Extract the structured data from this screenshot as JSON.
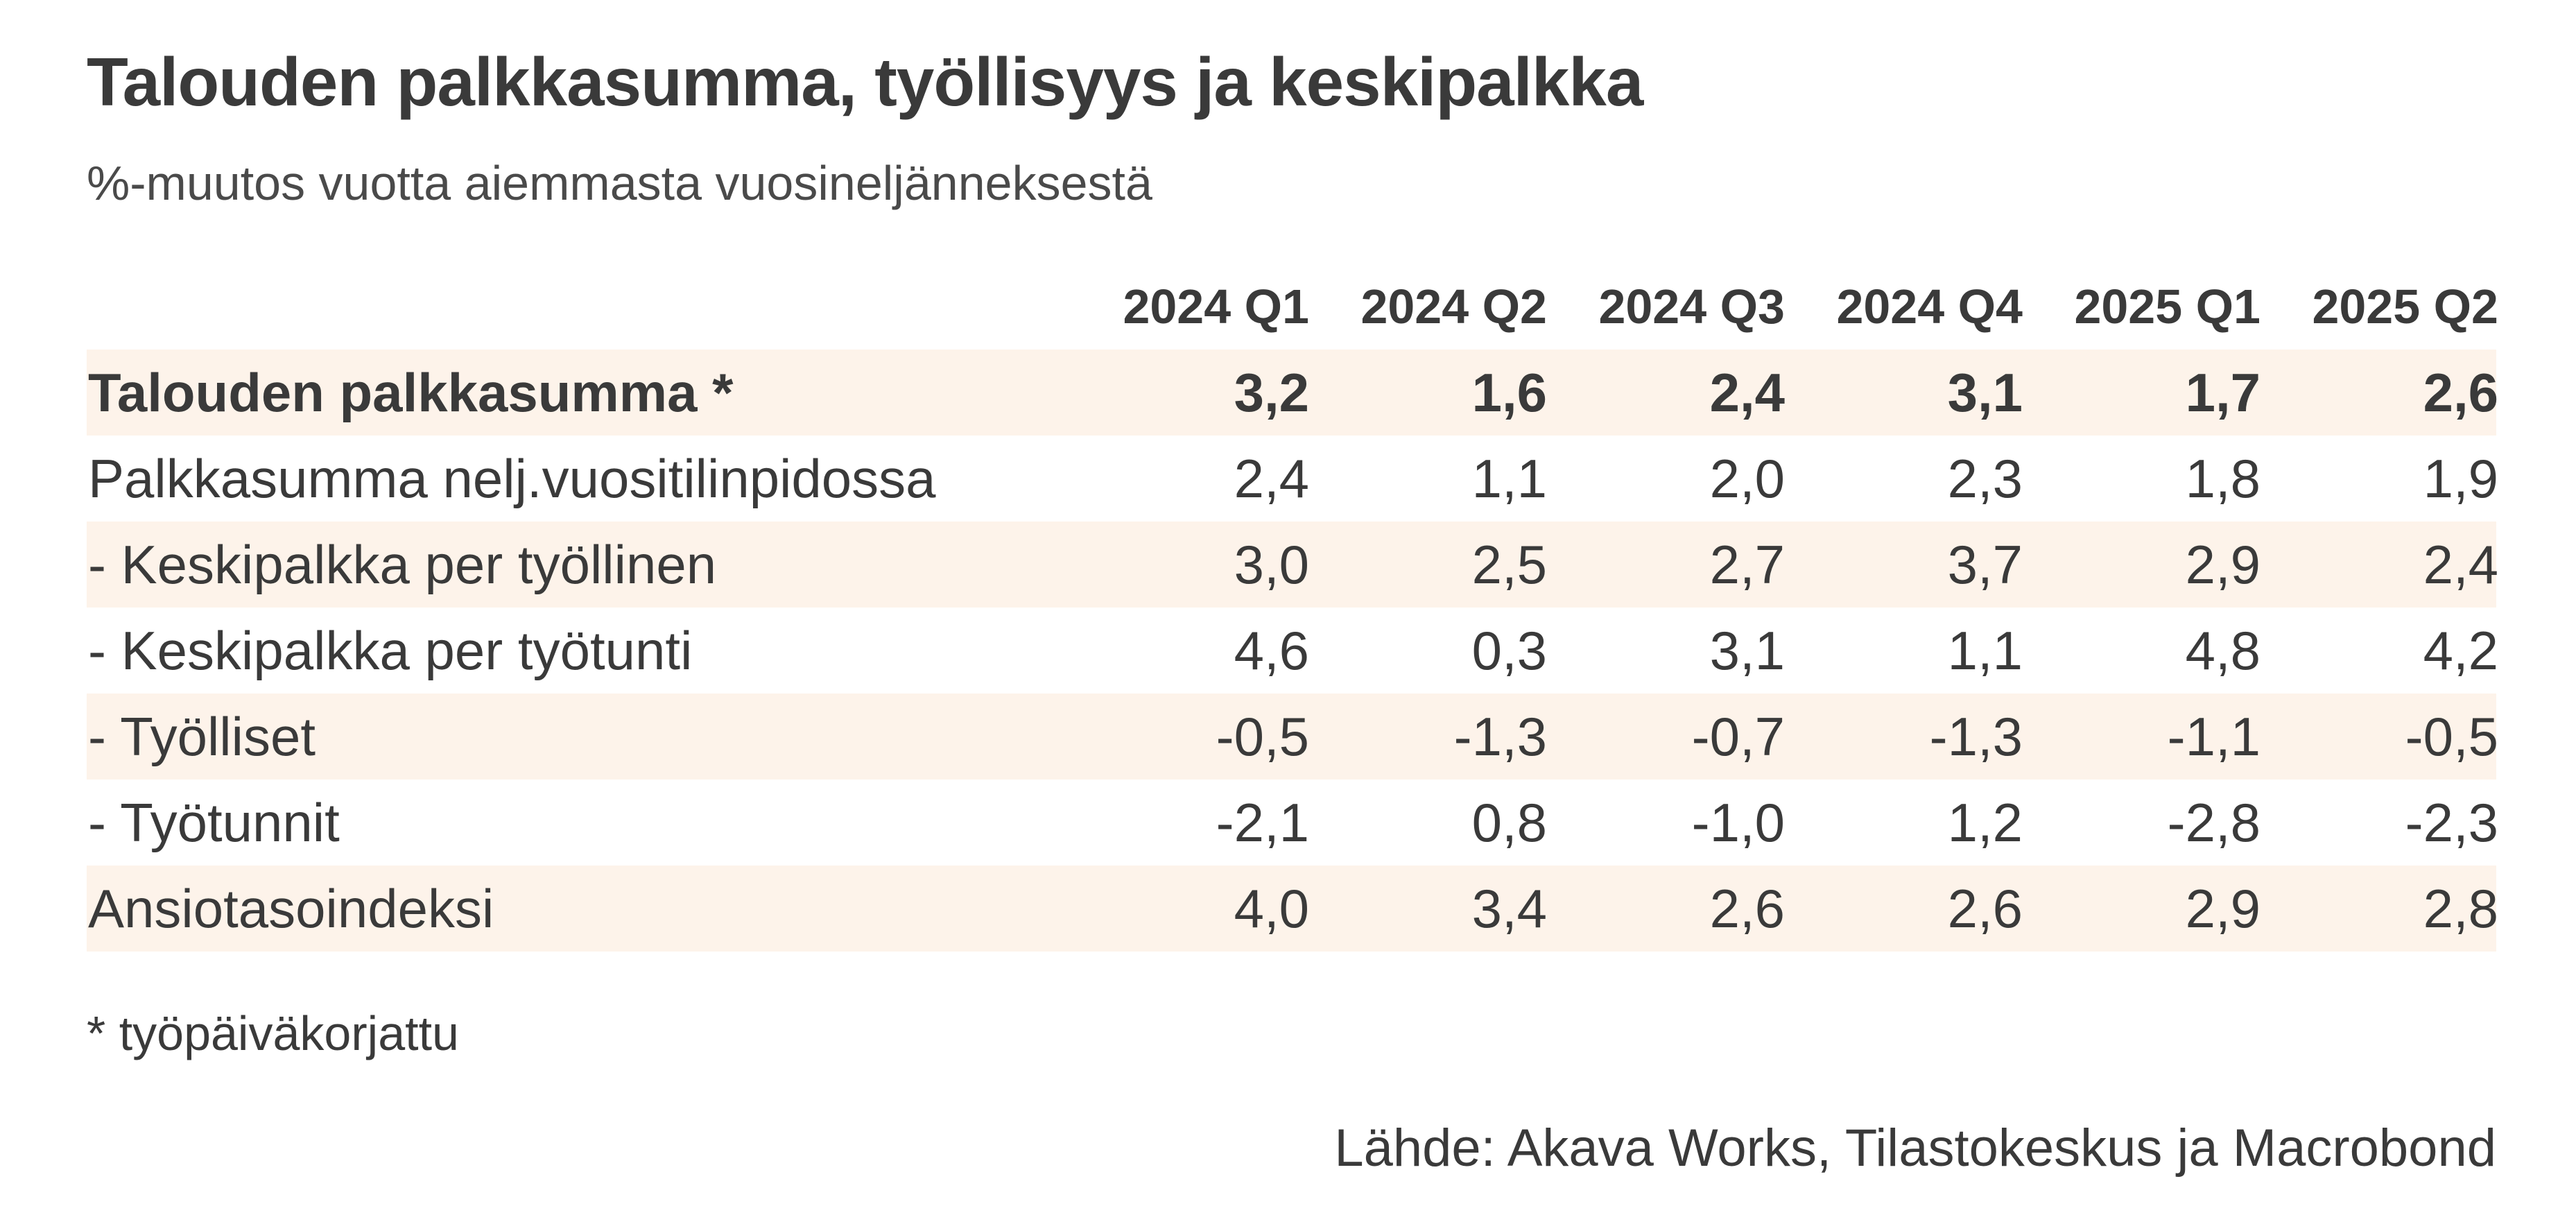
{
  "title": "Talouden palkkasumma, työllisyys ja keskipalkka",
  "subtitle": "%-muutos vuotta aiemmasta vuosineljänneksestä",
  "footnote": "* työpäiväkorjattu",
  "source": "Lähde: Akava Works, Tilastokeskus ja Macrobond",
  "colors": {
    "row_shading": "#fdf3ea",
    "text": "#3a3a3a"
  },
  "chart_data": {
    "type": "table",
    "title": "Talouden palkkasumma, työllisyys ja keskipalkka",
    "subtitle": "%-muutos vuotta aiemmasta vuosineljänneksestä",
    "columns": [
      "2024 Q1",
      "2024 Q2",
      "2024 Q3",
      "2024 Q4",
      "2025 Q1",
      "2025 Q2"
    ],
    "rows": [
      {
        "label": "Talouden palkkasumma *",
        "values": [
          "3,2",
          "1,6",
          "2,4",
          "3,1",
          "1,7",
          "2,6"
        ]
      },
      {
        "label": "Palkkasumma nelj.vuositilinpidossa",
        "values": [
          "2,4",
          "1,1",
          "2,0",
          "2,3",
          "1,8",
          "1,9"
        ]
      },
      {
        "label": "- Keskipalkka per työllinen",
        "values": [
          "3,0",
          "2,5",
          "2,7",
          "3,7",
          "2,9",
          "2,4"
        ]
      },
      {
        "label": "- Keskipalkka per työtunti",
        "values": [
          "4,6",
          "0,3",
          "3,1",
          "1,1",
          "4,8",
          "4,2"
        ]
      },
      {
        "label": "- Työlliset",
        "values": [
          "-0,5",
          "-1,3",
          "-0,7",
          "-1,3",
          "-1,1",
          "-0,5"
        ]
      },
      {
        "label": "- Työtunnit",
        "values": [
          "-2,1",
          "0,8",
          "-1,0",
          "1,2",
          "-2,8",
          "-2,3"
        ]
      },
      {
        "label": "Ansiotasoindeksi",
        "values": [
          "4,0",
          "3,4",
          "2,6",
          "2,6",
          "2,9",
          "2,8"
        ]
      }
    ]
  }
}
